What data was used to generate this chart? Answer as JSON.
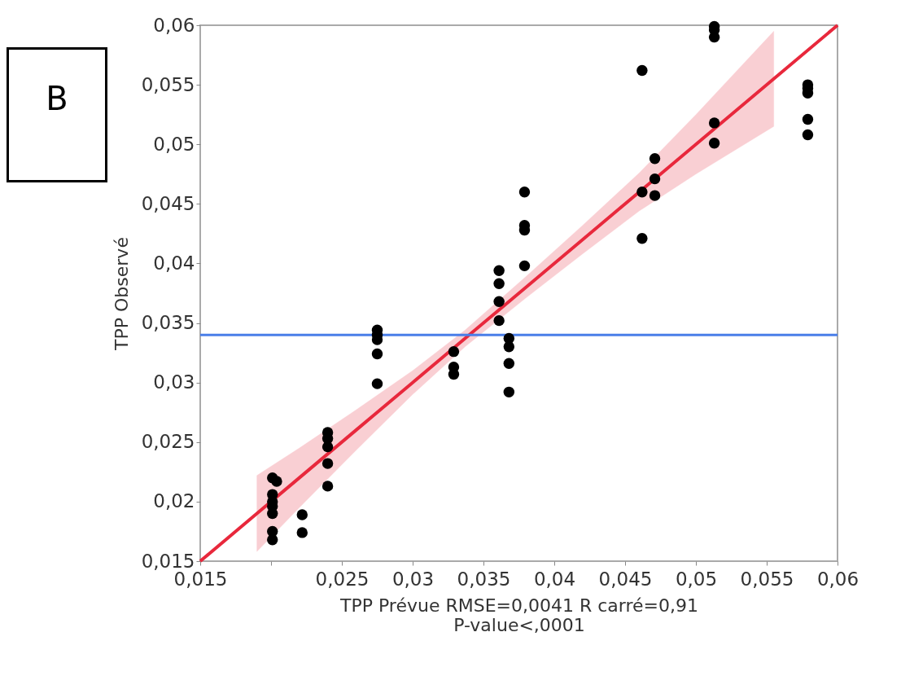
{
  "chart_data": {
    "type": "scatter",
    "xlabel": "TPP Prévue RMSE=0,0041 R carré=0,91 P-value<,0001",
    "ylabel": "TPP Observé",
    "annotations": [
      "B"
    ],
    "xlim": [
      0.015,
      0.06
    ],
    "ylim": [
      0.015,
      0.06
    ],
    "xticks": [
      {
        "value": 0.015,
        "label": "0,015"
      },
      {
        "value": 0.02,
        "label": null
      },
      {
        "value": 0.025,
        "label": "0,025"
      },
      {
        "value": 0.03,
        "label": "0,03"
      },
      {
        "value": 0.035,
        "label": "0,035"
      },
      {
        "value": 0.04,
        "label": "0,04"
      },
      {
        "value": 0.045,
        "label": "0,045"
      },
      {
        "value": 0.05,
        "label": "0,05"
      },
      {
        "value": 0.055,
        "label": "0,055"
      },
      {
        "value": 0.06,
        "label": "0,06"
      }
    ],
    "yticks": [
      {
        "value": 0.015,
        "label": "0,015"
      },
      {
        "value": 0.02,
        "label": "0,02"
      },
      {
        "value": 0.025,
        "label": "0,025"
      },
      {
        "value": 0.03,
        "label": "0,03"
      },
      {
        "value": 0.035,
        "label": "0,035"
      },
      {
        "value": 0.04,
        "label": "0,04"
      },
      {
        "value": 0.045,
        "label": "0,045"
      },
      {
        "value": 0.05,
        "label": "0,05"
      },
      {
        "value": 0.055,
        "label": "0,055"
      },
      {
        "value": 0.06,
        "label": "0,06"
      }
    ],
    "grid": false,
    "marker": "circle",
    "ref_lines": [
      {
        "axis": "y",
        "value": 0.034,
        "label": null,
        "color": "#4a7ee8"
      }
    ],
    "series": [
      {
        "color": "#000000",
        "x": [
          0.0201,
          0.0201,
          0.0201,
          0.0201,
          0.0201,
          0.0201,
          0.0201,
          0.0204,
          0.0222,
          0.0222,
          0.024,
          0.024,
          0.024,
          0.024,
          0.024,
          0.0275,
          0.0275,
          0.0275,
          0.0275,
          0.0275,
          0.0329,
          0.0329,
          0.0329,
          0.0361,
          0.0361,
          0.0361,
          0.0361,
          0.0368,
          0.0368,
          0.0368,
          0.0368,
          0.0379,
          0.0379,
          0.0379,
          0.0379,
          0.0462,
          0.0462,
          0.0462,
          0.0471,
          0.0471,
          0.0471,
          0.0513,
          0.0513,
          0.0513,
          0.0513,
          0.0513,
          0.0579,
          0.0579,
          0.0579,
          0.0579,
          0.0579
        ],
        "values": [
          0.022,
          0.0206,
          0.02,
          0.0196,
          0.019,
          0.0175,
          0.0168,
          0.0217,
          0.0189,
          0.0174,
          0.0258,
          0.0253,
          0.0246,
          0.0232,
          0.0213,
          0.0344,
          0.034,
          0.0336,
          0.0324,
          0.0299,
          0.0326,
          0.0313,
          0.0307,
          0.0394,
          0.0383,
          0.0368,
          0.0352,
          0.0337,
          0.033,
          0.0316,
          0.0292,
          0.046,
          0.0432,
          0.0428,
          0.0398,
          0.0562,
          0.046,
          0.0421,
          0.0488,
          0.0471,
          0.0457,
          0.0599,
          0.0596,
          0.059,
          0.0518,
          0.0501,
          0.055,
          0.0547,
          0.0543,
          0.0521,
          0.0508
        ]
      },
      {
        "type": "line",
        "color": "#e8283c",
        "marker": "none",
        "x": [
          0.015,
          0.019,
          0.022,
          0.026,
          0.03,
          0.0337,
          0.038,
          0.042,
          0.046,
          0.05,
          0.0555,
          0.06
        ],
        "values": [
          0.015,
          0.019,
          0.022,
          0.026,
          0.03,
          0.0337,
          0.038,
          0.042,
          0.046,
          0.05,
          0.0555,
          0.06
        ],
        "lower": [
          null,
          0.0158,
          0.0195,
          0.0243,
          0.029,
          0.033,
          0.0371,
          0.0408,
          0.0444,
          0.0475,
          0.0515,
          null
        ],
        "upper": [
          null,
          0.0222,
          0.0245,
          0.0277,
          0.031,
          0.0344,
          0.0389,
          0.0432,
          0.0476,
          0.0525,
          0.0595,
          null
        ]
      }
    ]
  }
}
